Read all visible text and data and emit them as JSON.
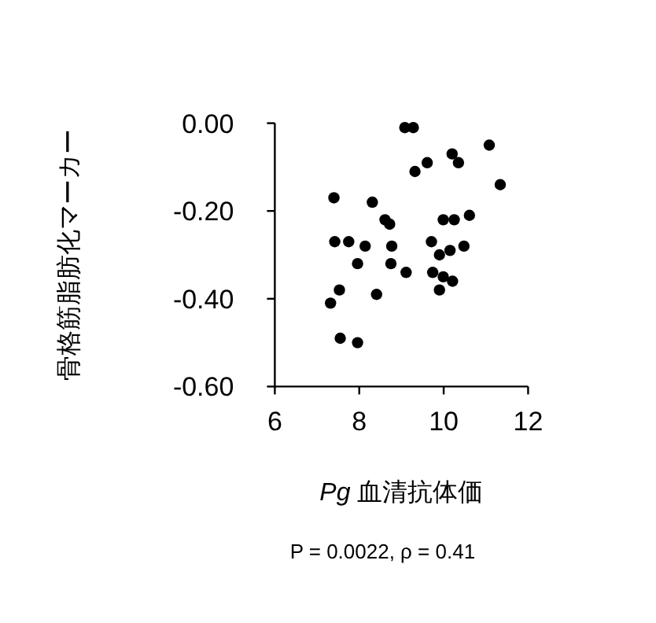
{
  "chart_data": {
    "type": "scatter",
    "xlabel": "Pg 血清抗体価",
    "ylabel": "骨格筋脂肪化マーカー",
    "annotations": [
      "P = 0.0022, ρ = 0.41"
    ],
    "xlim": [
      6,
      12
    ],
    "xticks": [
      6,
      8,
      10,
      12
    ],
    "ylim": [
      -0.6,
      0
    ],
    "yticks": [
      {
        "value": 0,
        "label": "0.00"
      },
      {
        "value": -0.2,
        "label": "-0.20"
      },
      {
        "value": -0.4,
        "label": "-0.40"
      },
      {
        "value": -0.6,
        "label": "-0.60"
      }
    ],
    "marker": "circle",
    "grid": false,
    "series": [
      {
        "color": "#000000",
        "x": [
          9.08,
          9.28,
          11.08,
          10.2,
          10.35,
          9.61,
          9.32,
          11.34,
          7.4,
          8.31,
          8.61,
          8.72,
          9.99,
          10.25,
          10.61,
          7.42,
          7.75,
          8.14,
          8.77,
          9.71,
          10.15,
          9.9,
          10.48,
          7.96,
          8.75,
          9.11,
          9.74,
          9.99,
          10.21,
          9.9,
          8.41,
          7.53,
          7.32,
          7.55,
          7.96
        ],
        "values": [
          -0.01,
          -0.01,
          -0.05,
          -0.07,
          -0.09,
          -0.09,
          -0.11,
          -0.14,
          -0.17,
          -0.18,
          -0.22,
          -0.23,
          -0.22,
          -0.22,
          -0.21,
          -0.27,
          -0.27,
          -0.28,
          -0.28,
          -0.27,
          -0.29,
          -0.3,
          -0.28,
          -0.32,
          -0.32,
          -0.34,
          -0.34,
          -0.35,
          -0.36,
          -0.38,
          -0.39,
          -0.38,
          -0.41,
          -0.49,
          -0.5
        ]
      }
    ]
  }
}
